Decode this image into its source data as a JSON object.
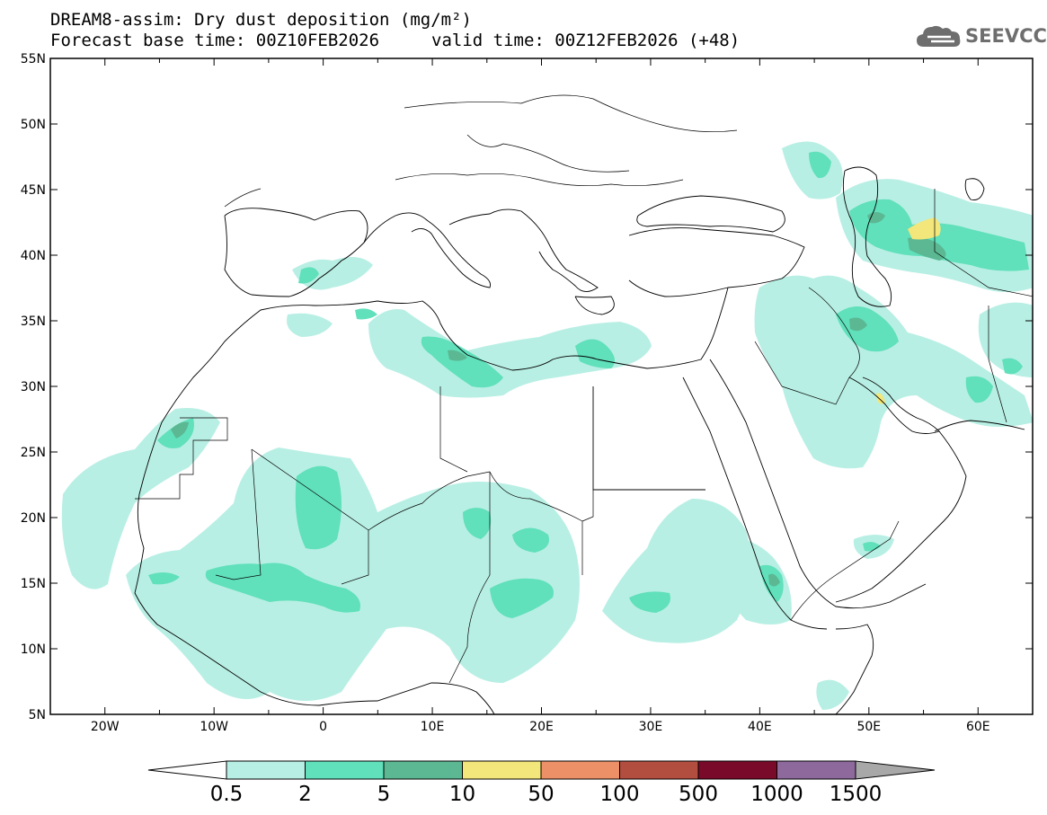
{
  "header": {
    "title_line1": "DREAM8-assim: Dry dust deposition (mg/m²)",
    "base_time": "Forecast base time: 00Z10FEB2026",
    "valid_time": "valid time: 00Z12FEB2026 (+48)"
  },
  "logo": {
    "text": "SEEVCCC",
    "icon": "cloud-logo-icon"
  },
  "axes": {
    "lat_labels": [
      "55N",
      "50N",
      "45N",
      "40N",
      "35N",
      "30N",
      "25N",
      "20N",
      "15N",
      "10N",
      "5N"
    ],
    "lon_labels": [
      "20W",
      "10W",
      "0",
      "10E",
      "20E",
      "30E",
      "40E",
      "50E",
      "60E"
    ]
  },
  "colorbar": {
    "labels": [
      "0.5",
      "2",
      "5",
      "10",
      "50",
      "100",
      "500",
      "1000",
      "1500"
    ],
    "colors": [
      "#ffffff",
      "#b8efe4",
      "#60e0bb",
      "#5bb892",
      "#f3e67a",
      "#ec9068",
      "#b24e40",
      "#7a0a2a",
      "#8d6a9b",
      "#a8a8a8"
    ]
  }
}
